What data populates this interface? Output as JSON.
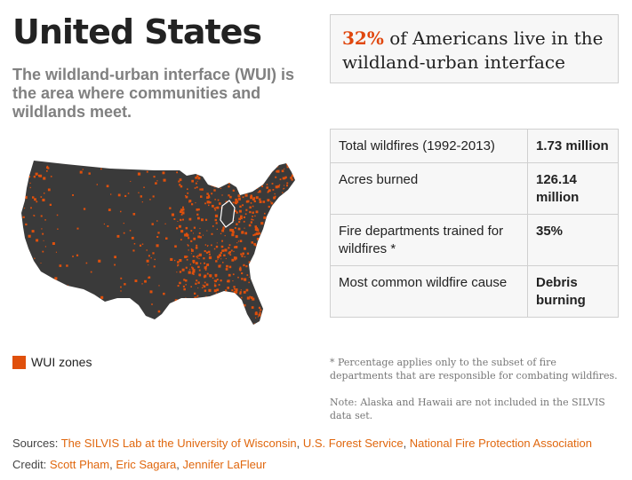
{
  "title": "United States",
  "intro": "The wildland-urban interface (WUI) is the area where communities and wildlands meet.",
  "highlight": {
    "percent": "32%",
    "text": " of Americans live in the wildland-urban interface"
  },
  "map": {
    "land_color": "#3a3a3a",
    "wui_color": "#e0500c"
  },
  "legend": {
    "label": "WUI zones",
    "color": "#e0500c"
  },
  "facts": [
    {
      "label": "Total wildfires (1992-2013)",
      "value": "1.73 million"
    },
    {
      "label": "Acres burned",
      "value": "126.14 million"
    },
    {
      "label": "Fire departments trained for wildfires *",
      "value": "35%"
    },
    {
      "label": "Most common wildfire cause",
      "value": "Debris burning"
    }
  ],
  "footnotes": [
    "* Percentage applies only to the subset of fire departments that are responsible for combating wildfires.",
    "Note: Alaska and Hawaii are not included in the SILVIS data set."
  ],
  "sources": {
    "label": "Sources: ",
    "links": [
      "The SILVIS Lab at the University of Wisconsin",
      "U.S. Forest Service",
      "National Fire Protection Association"
    ]
  },
  "credit": {
    "label": "Credit: ",
    "links": [
      "Scott Pham",
      "Eric Sagara",
      "Jennifer LaFleur"
    ]
  },
  "accent_color": "#e0470e"
}
